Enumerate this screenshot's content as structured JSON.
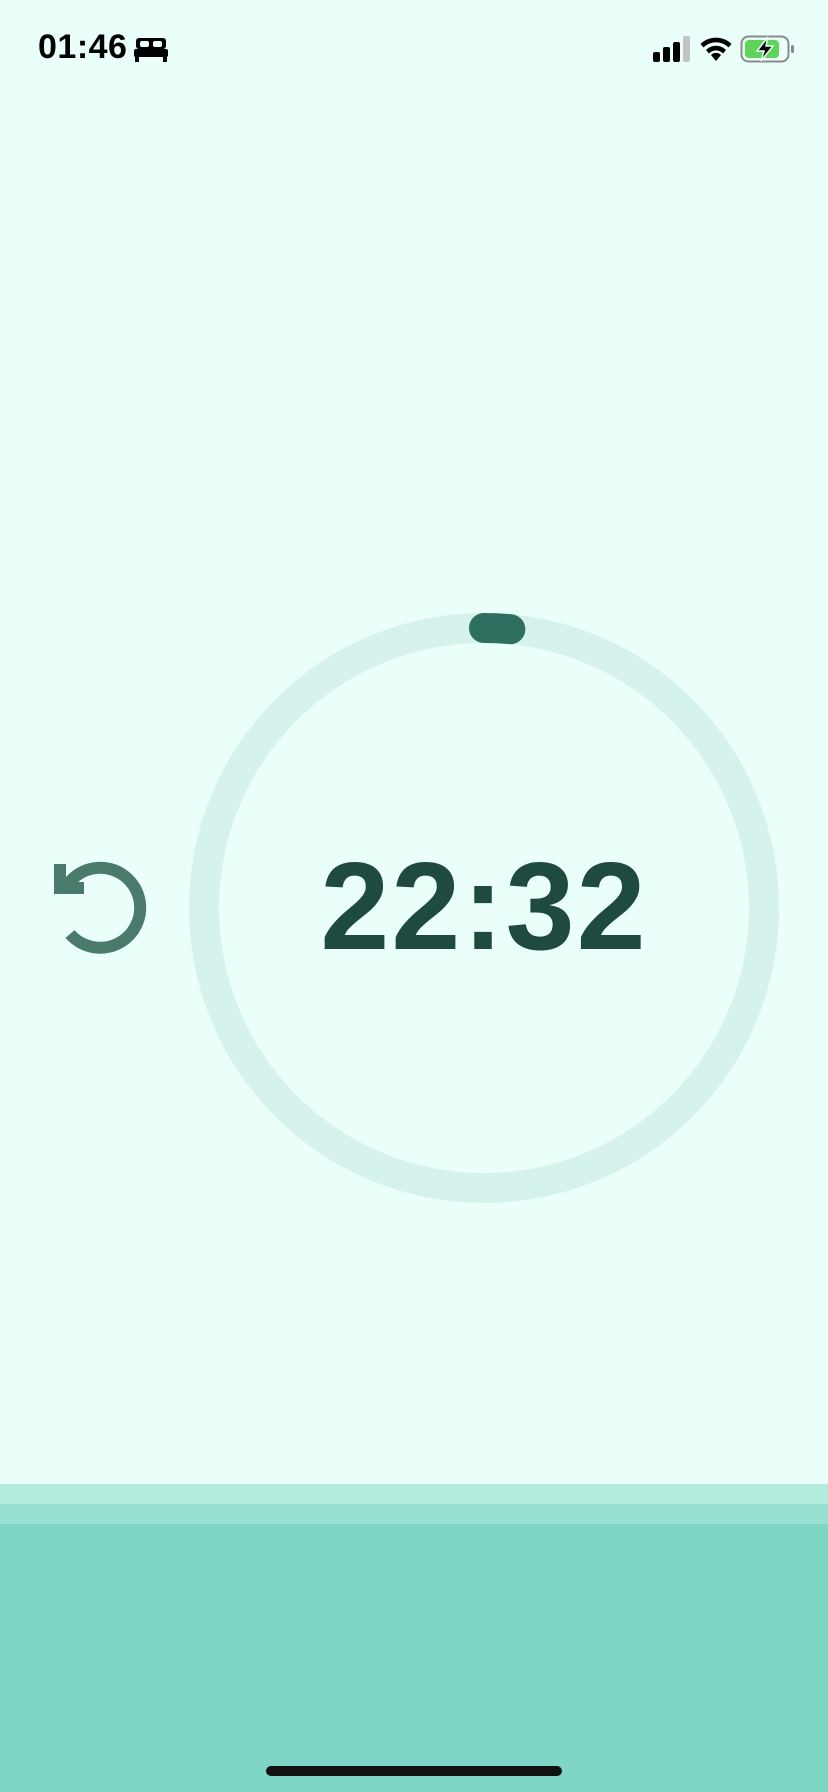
{
  "status_bar": {
    "time": "01:46",
    "focus_icon": "bed-icon",
    "signal_icon": "cellular-signal-icon",
    "wifi_icon": "wifi-icon",
    "battery_icon": "battery-charging-icon"
  },
  "timer": {
    "remaining": "22:32",
    "progress_fraction": 0.015,
    "reset_icon": "reset-icon"
  },
  "colors": {
    "background": "#eafff9",
    "ring_track": "#d6f2ec",
    "ring_progress": "#2f6f5f",
    "timer_text": "#1e4a3f",
    "reset_icon": "#4a7a6c",
    "bottom_panel": "#80d6c5",
    "battery_fill": "#5fd35a"
  }
}
